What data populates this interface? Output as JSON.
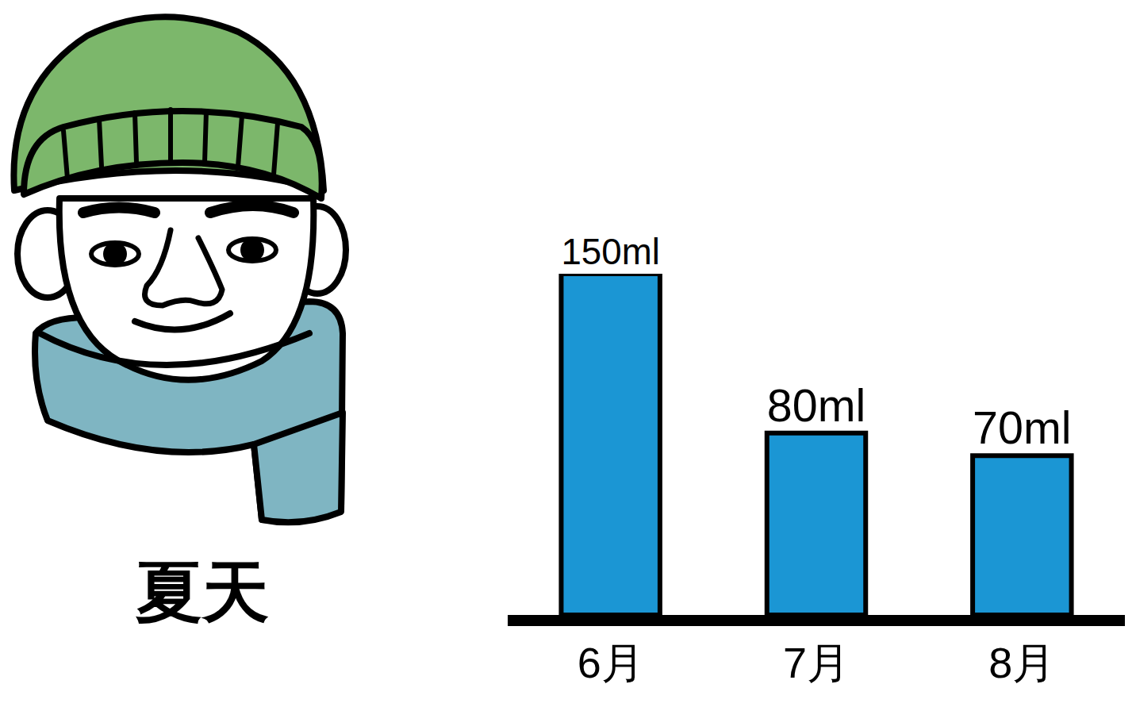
{
  "chart_data": {
    "type": "bar",
    "categories": [
      "6月",
      "7月",
      "8月"
    ],
    "values": [
      150,
      80,
      70
    ],
    "value_labels": [
      "150ml",
      "80ml",
      "70ml"
    ],
    "data_labels": true,
    "color": "#1b96d4",
    "ylim": [
      0,
      150
    ],
    "yticks": [],
    "tick_labels": "x",
    "grid": false
  },
  "illustration": {
    "caption": "夏天"
  }
}
